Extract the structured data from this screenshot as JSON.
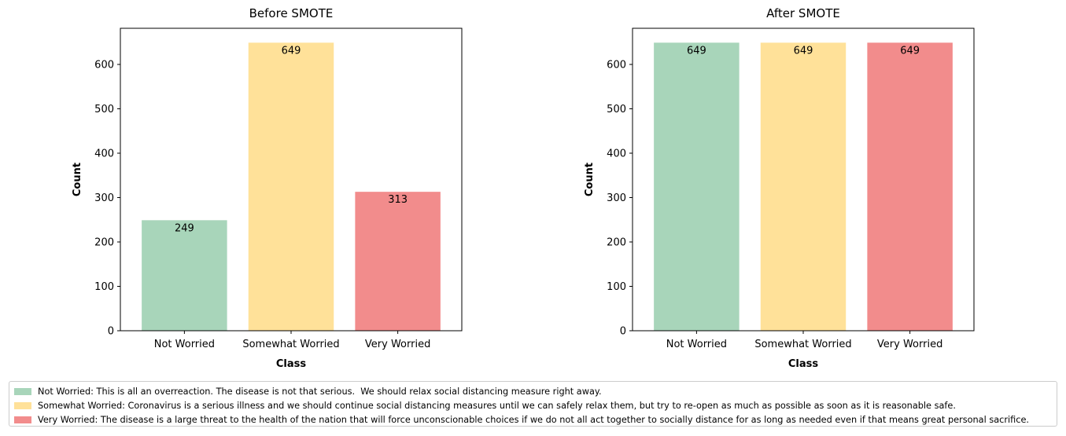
{
  "chart_data": [
    {
      "type": "bar",
      "title": "Before SMOTE",
      "xlabel": "Class",
      "ylabel": "Count",
      "categories": [
        "Not Worried",
        "Somewhat Worried",
        "Very Worried"
      ],
      "values": [
        249,
        649,
        313
      ],
      "value_labels": [
        "249",
        "649",
        "313"
      ],
      "colors": [
        "#a8d5ba",
        "#ffe199",
        "#f28c8c"
      ],
      "ylim": [
        0,
        681.45
      ],
      "yticks": [
        0,
        100,
        200,
        300,
        400,
        500,
        600
      ],
      "grid": false
    },
    {
      "type": "bar",
      "title": "After SMOTE",
      "xlabel": "Class",
      "ylabel": "Count",
      "categories": [
        "Not Worried",
        "Somewhat Worried",
        "Very Worried"
      ],
      "values": [
        649,
        649,
        649
      ],
      "value_labels": [
        "649",
        "649",
        "649"
      ],
      "colors": [
        "#a8d5ba",
        "#ffe199",
        "#f28c8c"
      ],
      "ylim": [
        0,
        681.45
      ],
      "yticks": [
        0,
        100,
        200,
        300,
        400,
        500,
        600
      ],
      "grid": false
    }
  ],
  "legend": {
    "placement": "bottom",
    "items": [
      {
        "color": "#a8d5ba",
        "label": "Not Worried: This is all an overreaction. The disease is not that serious.  We should relax social distancing measure right away."
      },
      {
        "color": "#ffe199",
        "label": "Somewhat Worried: Coronavirus is a serious illness and we should continue social distancing measures until we can safely relax them, but try to re-open as much as possible as soon as it is reasonable safe."
      },
      {
        "color": "#f28c8c",
        "label": "Very Worried: The disease is a large threat to the health of the nation that will force unconscionable choices if we do not all act together to socially distance for as long as needed even if that means great personal sacrifice."
      }
    ]
  }
}
